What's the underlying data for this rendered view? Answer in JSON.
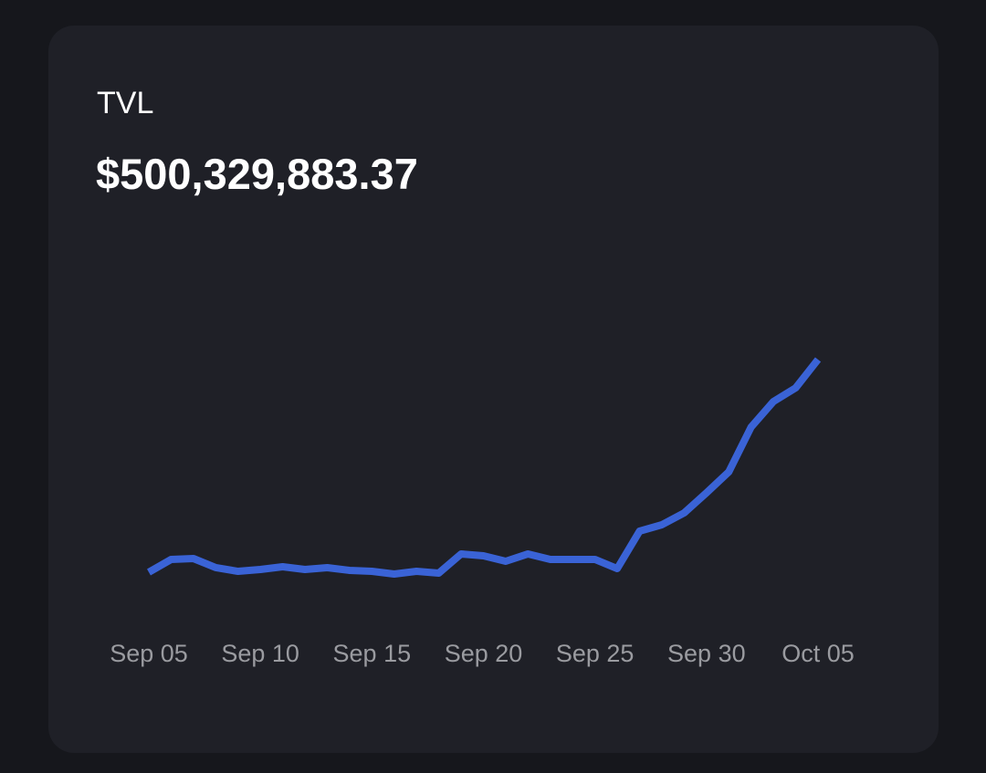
{
  "chart_data": {
    "type": "line",
    "title": "TVL",
    "subtitle": "$500,329,883.37",
    "categories": [
      "Sep 05",
      null,
      null,
      null,
      null,
      "Sep 10",
      null,
      null,
      null,
      null,
      "Sep 15",
      null,
      null,
      null,
      null,
      "Sep 20",
      null,
      null,
      null,
      null,
      "Sep 25",
      null,
      null,
      null,
      null,
      "Sep 30",
      null,
      null,
      null,
      null,
      "Oct 05"
    ],
    "series": [
      {
        "color": "#3a63d6",
        "values": [
          142700000,
          164200000,
          165700000,
          150400000,
          144200000,
          147300000,
          151900000,
          147300000,
          150400000,
          145800000,
          144200000,
          139600000,
          144200000,
          141200000,
          173400000,
          170300000,
          161100000,
          173400000,
          164200000,
          164200000,
          164200000,
          148800000,
          211700000,
          222500000,
          242400000,
          276200000,
          311400000,
          386600000,
          429600000,
          452600000,
          500300000
        ]
      }
    ],
    "ylim": [
      0,
      560000000
    ]
  }
}
